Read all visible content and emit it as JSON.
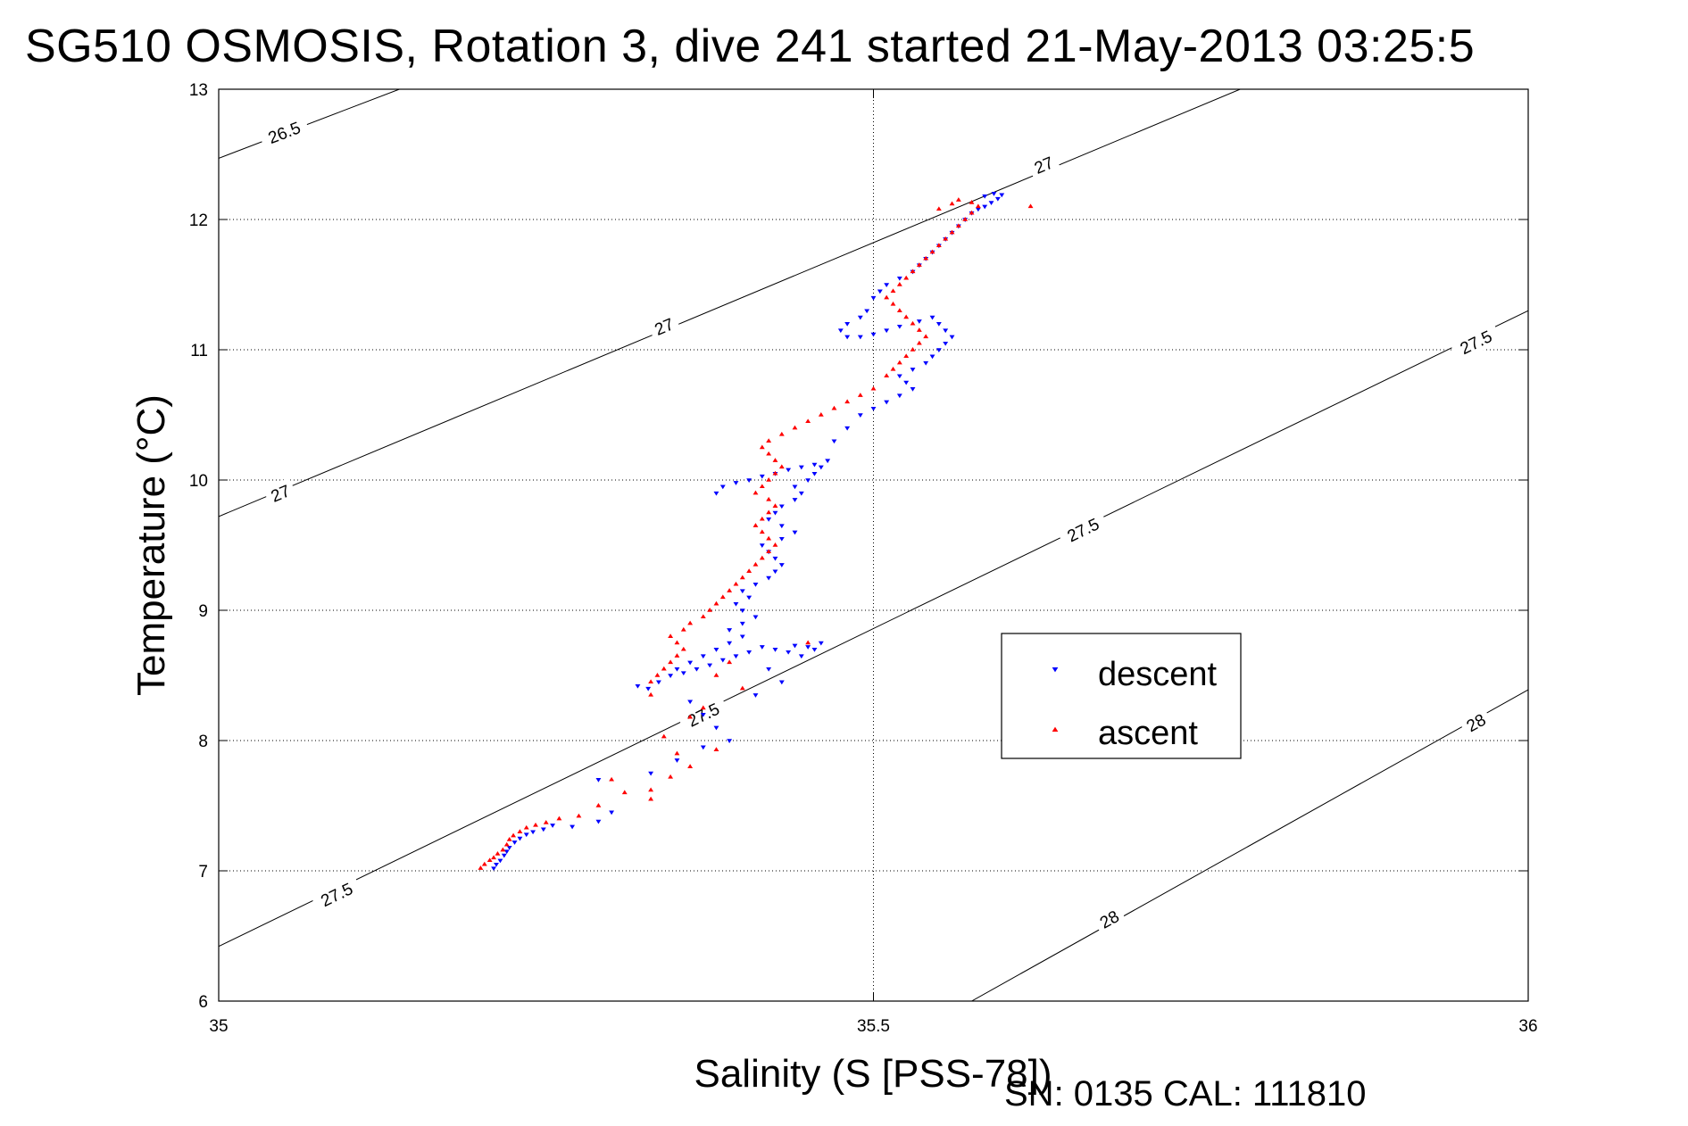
{
  "title": "SG510 OSMOSIS, Rotation 3, dive 241 started 21-May-2013 03:25:5",
  "footer": "SN: 0135  CAL: 111810",
  "colors": {
    "descent": "#0000ff",
    "ascent": "#ff0000",
    "contour": "#000000",
    "grid": "#000000"
  },
  "chart_data": {
    "type": "scatter",
    "xlabel": "Salinity (S [PSS-78])",
    "ylabel": "Temperature (°C)",
    "xlim": [
      35,
      36
    ],
    "ylim": [
      6,
      13
    ],
    "xticks": [
      35,
      35.5,
      36
    ],
    "xtick_labels": [
      "35",
      "35.5",
      "36"
    ],
    "yticks": [
      6,
      7,
      8,
      9,
      10,
      11,
      12,
      13
    ],
    "ytick_labels": [
      "6",
      "7",
      "8",
      "9",
      "10",
      "11",
      "12",
      "13"
    ],
    "grid": true,
    "legend": {
      "placement": "inside-lower-right",
      "entries": [
        "descent",
        "ascent"
      ]
    },
    "contours": [
      {
        "label": "26.5",
        "points": [
          [
            35,
            12.47
          ],
          [
            35.138,
            13
          ]
        ],
        "labels_at": [
          [
            35.05,
            12.67
          ]
        ]
      },
      {
        "label": "27",
        "points": [
          [
            35,
            9.72
          ],
          [
            35.78,
            13
          ]
        ],
        "labels_at": [
          [
            35.047,
            9.9
          ],
          [
            35.34,
            11.18
          ],
          [
            35.63,
            12.42
          ]
        ]
      },
      {
        "label": "27.5",
        "points": [
          [
            35,
            6.42
          ],
          [
            36,
            11.3
          ]
        ],
        "labels_at": [
          [
            35.09,
            6.82
          ],
          [
            35.37,
            8.2
          ],
          [
            35.66,
            9.62
          ],
          [
            35.96,
            11.06
          ]
        ]
      },
      {
        "label": "28",
        "points": [
          [
            35.575,
            6
          ],
          [
            36,
            8.39
          ]
        ],
        "labels_at": [
          [
            35.68,
            6.63
          ],
          [
            35.96,
            8.14
          ]
        ]
      }
    ],
    "series": [
      {
        "name": "descent",
        "marker": "triangle-down",
        "points": [
          [
            35.21,
            7.02
          ],
          [
            35.212,
            7.05
          ],
          [
            35.215,
            7.08
          ],
          [
            35.218,
            7.12
          ],
          [
            35.22,
            7.15
          ],
          [
            35.222,
            7.18
          ],
          [
            35.226,
            7.22
          ],
          [
            35.23,
            7.25
          ],
          [
            35.235,
            7.28
          ],
          [
            35.24,
            7.3
          ],
          [
            35.248,
            7.32
          ],
          [
            35.255,
            7.35
          ],
          [
            35.27,
            7.34
          ],
          [
            35.29,
            7.38
          ],
          [
            35.32,
            8.42
          ],
          [
            35.328,
            8.4
          ],
          [
            35.336,
            8.45
          ],
          [
            35.345,
            8.5
          ],
          [
            35.355,
            8.52
          ],
          [
            35.365,
            8.55
          ],
          [
            35.375,
            8.58
          ],
          [
            35.385,
            8.62
          ],
          [
            35.395,
            8.65
          ],
          [
            35.405,
            8.68
          ],
          [
            35.415,
            8.72
          ],
          [
            35.425,
            8.7
          ],
          [
            35.435,
            8.68
          ],
          [
            35.445,
            8.65
          ],
          [
            35.455,
            8.7
          ],
          [
            35.46,
            8.75
          ],
          [
            35.45,
            8.72
          ],
          [
            35.44,
            8.73
          ],
          [
            35.35,
            8.55
          ],
          [
            35.36,
            8.6
          ],
          [
            35.37,
            8.65
          ],
          [
            35.38,
            8.7
          ],
          [
            35.39,
            8.75
          ],
          [
            35.4,
            8.8
          ],
          [
            35.39,
            8.85
          ],
          [
            35.4,
            8.9
          ],
          [
            35.41,
            8.95
          ],
          [
            35.4,
            9.0
          ],
          [
            35.395,
            9.05
          ],
          [
            35.405,
            9.1
          ],
          [
            35.4,
            9.15
          ],
          [
            35.41,
            9.2
          ],
          [
            35.42,
            9.25
          ],
          [
            35.425,
            9.3
          ],
          [
            35.43,
            9.35
          ],
          [
            35.425,
            9.4
          ],
          [
            35.42,
            9.45
          ],
          [
            35.415,
            9.5
          ],
          [
            35.43,
            9.55
          ],
          [
            35.44,
            9.6
          ],
          [
            35.43,
            9.65
          ],
          [
            35.42,
            9.7
          ],
          [
            35.425,
            9.75
          ],
          [
            35.43,
            9.8
          ],
          [
            35.44,
            9.85
          ],
          [
            35.445,
            9.9
          ],
          [
            35.44,
            9.95
          ],
          [
            35.45,
            10.0
          ],
          [
            35.455,
            10.05
          ],
          [
            35.46,
            10.1
          ],
          [
            35.465,
            10.15
          ],
          [
            35.455,
            10.12
          ],
          [
            35.445,
            10.1
          ],
          [
            35.435,
            10.08
          ],
          [
            35.425,
            10.05
          ],
          [
            35.415,
            10.03
          ],
          [
            35.405,
            10.0
          ],
          [
            35.395,
            9.98
          ],
          [
            35.385,
            9.95
          ],
          [
            35.38,
            9.9
          ],
          [
            35.47,
            10.3
          ],
          [
            35.48,
            10.4
          ],
          [
            35.49,
            10.5
          ],
          [
            35.5,
            10.55
          ],
          [
            35.51,
            10.6
          ],
          [
            35.52,
            10.65
          ],
          [
            35.53,
            10.7
          ],
          [
            35.525,
            10.75
          ],
          [
            35.52,
            10.8
          ],
          [
            35.53,
            10.85
          ],
          [
            35.54,
            10.9
          ],
          [
            35.545,
            10.95
          ],
          [
            35.55,
            11.0
          ],
          [
            35.555,
            11.05
          ],
          [
            35.56,
            11.1
          ],
          [
            35.555,
            11.15
          ],
          [
            35.55,
            11.2
          ],
          [
            35.545,
            11.25
          ],
          [
            35.535,
            11.22
          ],
          [
            35.52,
            11.18
          ],
          [
            35.51,
            11.15
          ],
          [
            35.5,
            11.12
          ],
          [
            35.49,
            11.1
          ],
          [
            35.48,
            11.1
          ],
          [
            35.475,
            11.15
          ],
          [
            35.48,
            11.2
          ],
          [
            35.49,
            11.25
          ],
          [
            35.495,
            11.3
          ],
          [
            35.5,
            11.4
          ],
          [
            35.505,
            11.45
          ],
          [
            35.51,
            11.5
          ],
          [
            35.52,
            11.55
          ],
          [
            35.53,
            11.6
          ],
          [
            35.535,
            11.65
          ],
          [
            35.54,
            11.7
          ],
          [
            35.545,
            11.75
          ],
          [
            35.55,
            11.8
          ],
          [
            35.555,
            11.85
          ],
          [
            35.56,
            11.9
          ],
          [
            35.565,
            11.95
          ],
          [
            35.57,
            12.0
          ],
          [
            35.575,
            12.05
          ],
          [
            35.58,
            12.08
          ],
          [
            35.585,
            12.1
          ],
          [
            35.59,
            12.13
          ],
          [
            35.595,
            12.16
          ],
          [
            35.598,
            12.19
          ],
          [
            35.592,
            12.2
          ],
          [
            35.585,
            12.18
          ],
          [
            35.36,
            8.3
          ],
          [
            35.37,
            8.2
          ],
          [
            35.38,
            8.1
          ],
          [
            35.39,
            8.0
          ],
          [
            35.37,
            7.95
          ],
          [
            35.35,
            7.85
          ],
          [
            35.33,
            7.75
          ],
          [
            35.29,
            7.7
          ],
          [
            35.3,
            7.45
          ],
          [
            35.42,
            8.55
          ],
          [
            35.43,
            8.45
          ],
          [
            35.41,
            8.35
          ]
        ]
      },
      {
        "name": "ascent",
        "marker": "triangle-up",
        "points": [
          [
            35.2,
            7.02
          ],
          [
            35.203,
            7.05
          ],
          [
            35.207,
            7.08
          ],
          [
            35.21,
            7.1
          ],
          [
            35.213,
            7.13
          ],
          [
            35.217,
            7.16
          ],
          [
            35.22,
            7.2
          ],
          [
            35.222,
            7.24
          ],
          [
            35.225,
            7.27
          ],
          [
            35.23,
            7.3
          ],
          [
            35.235,
            7.33
          ],
          [
            35.242,
            7.35
          ],
          [
            35.25,
            7.37
          ],
          [
            35.26,
            7.4
          ],
          [
            35.275,
            7.42
          ],
          [
            35.29,
            7.5
          ],
          [
            35.31,
            7.6
          ],
          [
            35.3,
            7.7
          ],
          [
            35.33,
            7.62
          ],
          [
            35.345,
            7.72
          ],
          [
            35.36,
            7.8
          ],
          [
            35.35,
            7.9
          ],
          [
            35.38,
            7.93
          ],
          [
            35.33,
            7.55
          ],
          [
            35.34,
            8.03
          ],
          [
            35.36,
            8.18
          ],
          [
            35.37,
            8.25
          ],
          [
            35.33,
            8.45
          ],
          [
            35.335,
            8.5
          ],
          [
            35.34,
            8.55
          ],
          [
            35.345,
            8.6
          ],
          [
            35.35,
            8.65
          ],
          [
            35.355,
            8.7
          ],
          [
            35.35,
            8.75
          ],
          [
            35.345,
            8.8
          ],
          [
            35.355,
            8.85
          ],
          [
            35.36,
            8.9
          ],
          [
            35.37,
            8.95
          ],
          [
            35.375,
            9.0
          ],
          [
            35.38,
            9.05
          ],
          [
            35.385,
            9.1
          ],
          [
            35.39,
            9.15
          ],
          [
            35.395,
            9.2
          ],
          [
            35.4,
            9.25
          ],
          [
            35.405,
            9.3
          ],
          [
            35.41,
            9.35
          ],
          [
            35.415,
            9.4
          ],
          [
            35.42,
            9.45
          ],
          [
            35.425,
            9.5
          ],
          [
            35.42,
            9.55
          ],
          [
            35.415,
            9.6
          ],
          [
            35.41,
            9.65
          ],
          [
            35.415,
            9.7
          ],
          [
            35.42,
            9.75
          ],
          [
            35.425,
            9.8
          ],
          [
            35.42,
            9.85
          ],
          [
            35.41,
            9.9
          ],
          [
            35.415,
            9.95
          ],
          [
            35.42,
            10.0
          ],
          [
            35.425,
            10.05
          ],
          [
            35.43,
            10.1
          ],
          [
            35.425,
            10.15
          ],
          [
            35.42,
            10.2
          ],
          [
            35.415,
            10.25
          ],
          [
            35.42,
            10.3
          ],
          [
            35.43,
            10.35
          ],
          [
            35.44,
            10.4
          ],
          [
            35.45,
            10.45
          ],
          [
            35.46,
            10.5
          ],
          [
            35.47,
            10.55
          ],
          [
            35.48,
            10.6
          ],
          [
            35.49,
            10.65
          ],
          [
            35.5,
            10.7
          ],
          [
            35.51,
            10.8
          ],
          [
            35.515,
            10.85
          ],
          [
            35.52,
            10.9
          ],
          [
            35.525,
            10.95
          ],
          [
            35.53,
            11.0
          ],
          [
            35.535,
            11.05
          ],
          [
            35.54,
            11.1
          ],
          [
            35.535,
            11.15
          ],
          [
            35.53,
            11.2
          ],
          [
            35.525,
            11.25
          ],
          [
            35.52,
            11.3
          ],
          [
            35.515,
            11.35
          ],
          [
            35.51,
            11.4
          ],
          [
            35.515,
            11.45
          ],
          [
            35.52,
            11.5
          ],
          [
            35.525,
            11.55
          ],
          [
            35.53,
            11.6
          ],
          [
            35.535,
            11.65
          ],
          [
            35.54,
            11.7
          ],
          [
            35.545,
            11.75
          ],
          [
            35.55,
            11.8
          ],
          [
            35.555,
            11.85
          ],
          [
            35.56,
            11.9
          ],
          [
            35.565,
            11.95
          ],
          [
            35.57,
            12.0
          ],
          [
            35.575,
            12.05
          ],
          [
            35.58,
            12.1
          ],
          [
            35.575,
            12.13
          ],
          [
            35.565,
            12.15
          ],
          [
            35.56,
            12.12
          ],
          [
            35.55,
            12.08
          ],
          [
            35.62,
            12.1
          ],
          [
            35.38,
            8.5
          ],
          [
            35.39,
            8.6
          ],
          [
            35.4,
            8.4
          ],
          [
            35.33,
            8.35
          ],
          [
            35.45,
            8.75
          ]
        ]
      }
    ]
  }
}
